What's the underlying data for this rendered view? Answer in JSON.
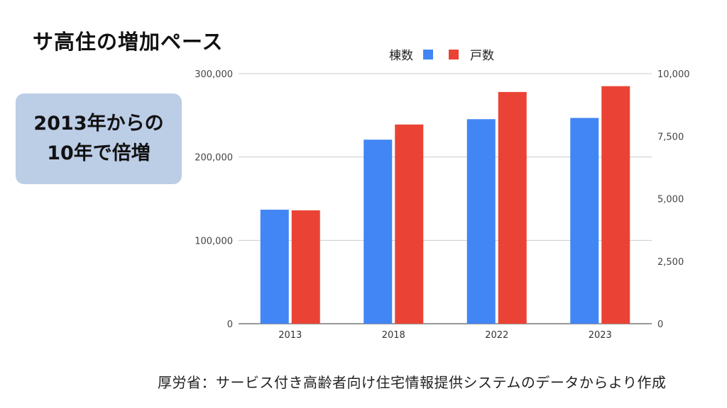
{
  "title": "サ高住の増加ペース",
  "callout": {
    "line1": "2013年からの",
    "line2": "10年で倍増"
  },
  "source": "厚労省：サービス付き高齢者向け住宅情報提供システムのデータからより作成",
  "colors": {
    "series_buildings": "#4285f4",
    "series_units": "#ea4335",
    "callout_bg": "#bccde6"
  },
  "chart_data": {
    "type": "bar",
    "categories": [
      "2013",
      "2018",
      "2022",
      "2023"
    ],
    "series": [
      {
        "name": "棟数",
        "axis": "right",
        "values": [
          4560,
          7360,
          8180,
          8230
        ]
      },
      {
        "name": "戸数",
        "axis": "left",
        "values": [
          136000,
          239000,
          278000,
          285000
        ]
      }
    ],
    "y_left": {
      "range": [
        0,
        300000
      ],
      "ticks": [
        "0",
        "100,000",
        "200,000",
        "300,000"
      ]
    },
    "y_right": {
      "range": [
        0,
        10000
      ],
      "ticks": [
        "0",
        "2,500",
        "5,000",
        "7,500",
        "10,000"
      ]
    },
    "grid": true,
    "legend": "top-center"
  }
}
